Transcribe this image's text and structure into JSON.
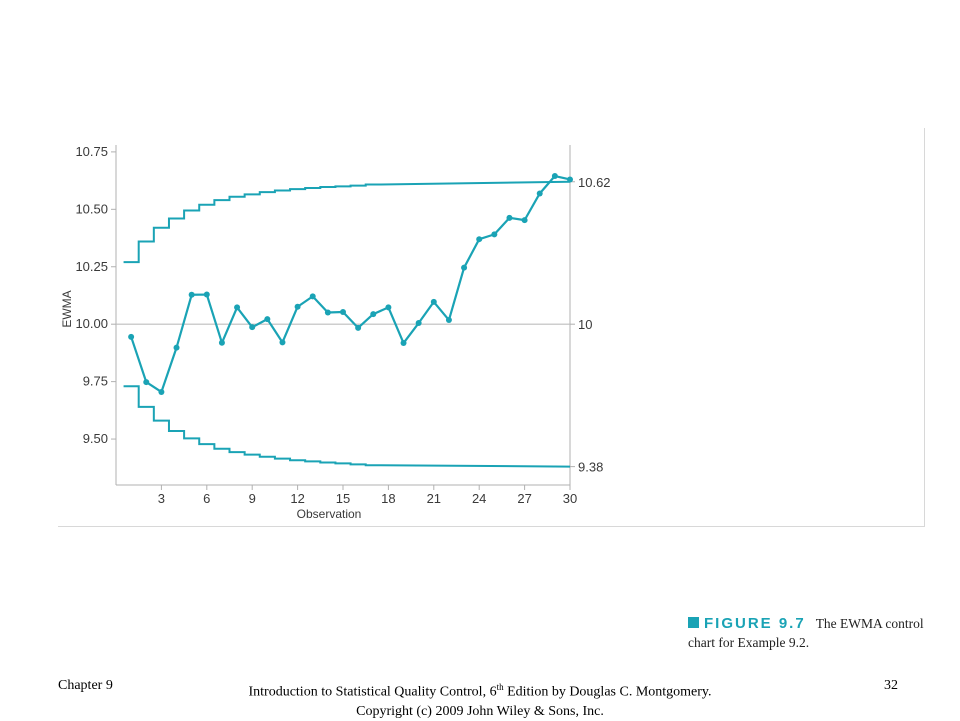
{
  "chart_data": {
    "type": "line",
    "title": "",
    "xlabel": "Observation",
    "ylabel": "EWMA",
    "xlim": [
      0,
      30
    ],
    "ylim": [
      9.3,
      10.78
    ],
    "xticks": [
      3,
      6,
      9,
      12,
      15,
      18,
      21,
      24,
      27,
      30
    ],
    "xtick_labels": [
      "3",
      "6",
      "9",
      "12",
      "15",
      "18",
      "21",
      "24",
      "27",
      "30"
    ],
    "yticks": [
      9.5,
      9.75,
      10.0,
      10.25,
      10.5,
      10.75
    ],
    "ytick_labels": [
      "9.50",
      "9.75",
      "10.00",
      "10.25",
      "10.50",
      "10.75"
    ],
    "right_labels": [
      "10.62",
      "10",
      "9.38"
    ],
    "grid": false,
    "center_line": 10.0,
    "x": [
      1,
      2,
      3,
      4,
      5,
      6,
      7,
      8,
      9,
      10,
      11,
      12,
      13,
      14,
      15,
      16,
      17,
      18,
      19,
      20,
      21,
      22,
      23,
      24,
      25,
      26,
      27,
      28,
      29,
      30
    ],
    "series": [
      {
        "values": [
          9.945,
          9.748,
          9.705,
          9.898,
          10.128,
          10.129,
          9.919,
          10.073,
          9.987,
          10.022,
          9.921,
          10.076,
          10.121,
          10.051,
          10.053,
          9.984,
          10.044,
          10.073,
          9.918,
          10.005,
          10.097,
          10.018,
          10.246,
          10.37,
          10.391,
          10.463,
          10.453,
          10.569,
          10.645,
          10.63
        ]
      }
    ],
    "ucl_steps": [
      10.27,
      10.36,
      10.42,
      10.46,
      10.495,
      10.52,
      10.54,
      10.555,
      10.565,
      10.575,
      10.582,
      10.588,
      10.593,
      10.597,
      10.6,
      10.603,
      10.608
    ],
    "ucl_asymptote": 10.62,
    "lcl_steps": [
      9.73,
      9.64,
      9.58,
      9.535,
      9.503,
      9.478,
      9.458,
      9.443,
      9.432,
      9.423,
      9.415,
      9.408,
      9.403,
      9.398,
      9.394,
      9.39,
      9.386
    ],
    "lcl_asymptote": 9.38,
    "colors": {
      "line": "#1aa3b5",
      "center": "#bdbdbd",
      "axis": "#b0b0b0"
    }
  },
  "caption": {
    "label": "FIGURE 9.7",
    "line1": "The EWMA control",
    "line2": "chart for Example 9.2."
  },
  "footer": {
    "left": "Chapter 9",
    "center_line1_pre": "Introduction to Statistical Quality Control, 6",
    "center_line1_sup": "th",
    "center_line1_post": " Edition by Douglas C. Montgomery.",
    "center_line2": "Copyright (c) 2009  John Wiley & Sons, Inc.",
    "right": "32"
  }
}
